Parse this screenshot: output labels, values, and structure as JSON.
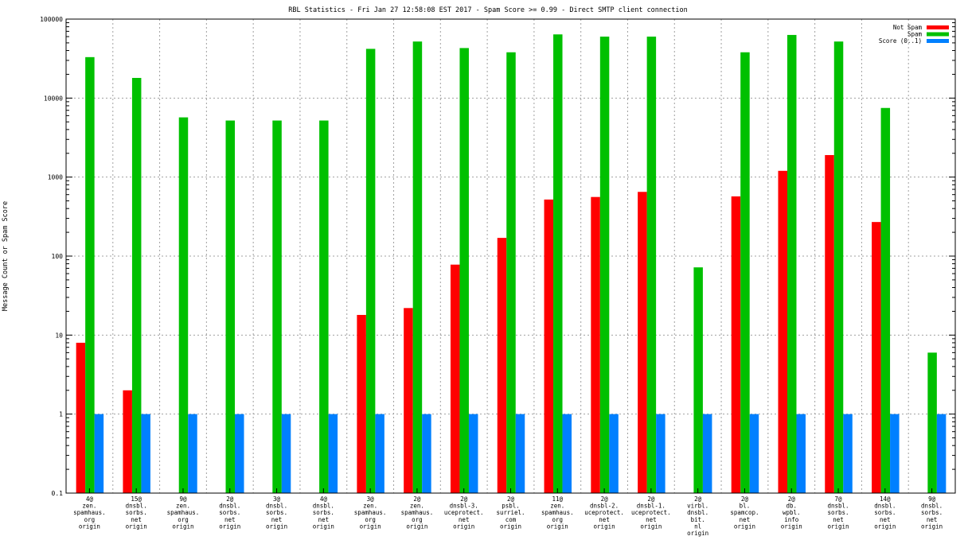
{
  "chart_data": {
    "type": "bar",
    "title": "RBL Statistics - Fri Jan 27 12:58:08 EST 2017 - Spam Score >= 0.99 - Direct SMTP client connection",
    "xlabel": "",
    "ylabel": "Message Count or Spam Score",
    "yscale": "log",
    "ylim": [
      0.1,
      100000
    ],
    "yticks": [
      "0.1",
      "1",
      "10",
      "100",
      "1000",
      "10000",
      "100000"
    ],
    "grid": true,
    "legend_position": "top-right",
    "categories": [
      [
        "4@",
        "zen.",
        "spamhaus.",
        "org",
        "origin"
      ],
      [
        "15@",
        "dnsbl.",
        "sorbs.",
        "net",
        "origin"
      ],
      [
        "9@",
        "zen.",
        "spamhaus.",
        "org",
        "origin"
      ],
      [
        "2@",
        "dnsbl.",
        "sorbs.",
        "net",
        "origin"
      ],
      [
        "3@",
        "dnsbl.",
        "sorbs.",
        "net",
        "origin"
      ],
      [
        "4@",
        "dnsbl.",
        "sorbs.",
        "net",
        "origin"
      ],
      [
        "3@",
        "zen.",
        "spamhaus.",
        "org",
        "origin"
      ],
      [
        "2@",
        "zen.",
        "spamhaus.",
        "org",
        "origin"
      ],
      [
        "2@",
        "dnsbl-3.",
        "uceprotect.",
        "net",
        "origin"
      ],
      [
        "2@",
        "psbl.",
        "surriel.",
        "com",
        "origin"
      ],
      [
        "11@",
        "zen.",
        "spamhaus.",
        "org",
        "origin"
      ],
      [
        "2@",
        "dnsbl-2.",
        "uceprotect.",
        "net",
        "origin"
      ],
      [
        "2@",
        "dnsbl-1.",
        "uceprotect.",
        "net",
        "origin"
      ],
      [
        "2@",
        "virbl.",
        "dnsbl.",
        "bit.",
        "nl",
        "origin"
      ],
      [
        "2@",
        "bl.",
        "spamcop.",
        "net",
        "origin"
      ],
      [
        "2@",
        "db.",
        "wpbl.",
        "info",
        "origin"
      ],
      [
        "7@",
        "dnsbl.",
        "sorbs.",
        "net",
        "origin"
      ],
      [
        "14@",
        "dnsbl.",
        "sorbs.",
        "net",
        "origin"
      ],
      [
        "9@",
        "dnsbl.",
        "sorbs.",
        "net",
        "origin"
      ]
    ],
    "series": [
      {
        "name": "Not Spam",
        "color": "#ff0000",
        "values": [
          8,
          2,
          null,
          null,
          null,
          null,
          18,
          22,
          78,
          170,
          520,
          560,
          650,
          null,
          570,
          1200,
          1900,
          270,
          null
        ]
      },
      {
        "name": "Spam",
        "color": "#00c000",
        "values": [
          33000,
          18000,
          5700,
          5200,
          5200,
          5200,
          42000,
          52000,
          43000,
          38000,
          64000,
          60000,
          60000,
          72,
          38000,
          63000,
          52000,
          7500,
          6
        ]
      },
      {
        "name": "Score (0..1)",
        "color": "#0080ff",
        "values": [
          1,
          1,
          1,
          1,
          1,
          1,
          1,
          1,
          1,
          1,
          1,
          1,
          1,
          1,
          1,
          1,
          1,
          1,
          1
        ]
      }
    ]
  }
}
